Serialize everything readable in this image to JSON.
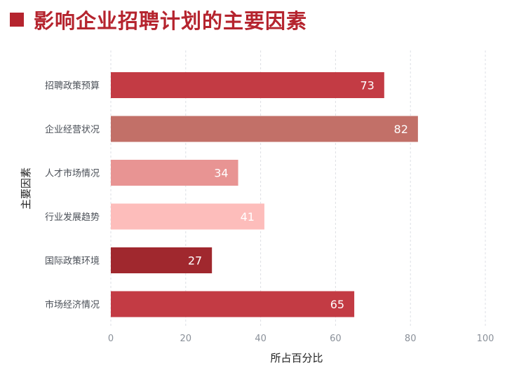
{
  "header": {
    "title": "影响企业招聘计划的主要因素",
    "accent_color": "#B5242E"
  },
  "chart_data": {
    "type": "bar",
    "orientation": "horizontal",
    "title": "影响企业招聘计划的主要因素",
    "xlabel": "所占百分比",
    "ylabel": "主要因素",
    "xlim": [
      0,
      100
    ],
    "xticks": [
      0,
      20,
      40,
      60,
      80,
      100
    ],
    "grid": "vertical dashed",
    "categories": [
      "招聘政策预算",
      "企业经营状况",
      "人才市场情况",
      "行业发展趋势",
      "国际政策环境",
      "市场经济情况"
    ],
    "values": [
      73,
      82,
      34,
      41,
      27,
      65
    ],
    "colors": [
      "#C33B44",
      "#C27068",
      "#E89493",
      "#FDBDBB",
      "#A0282E",
      "#C33B44"
    ]
  }
}
